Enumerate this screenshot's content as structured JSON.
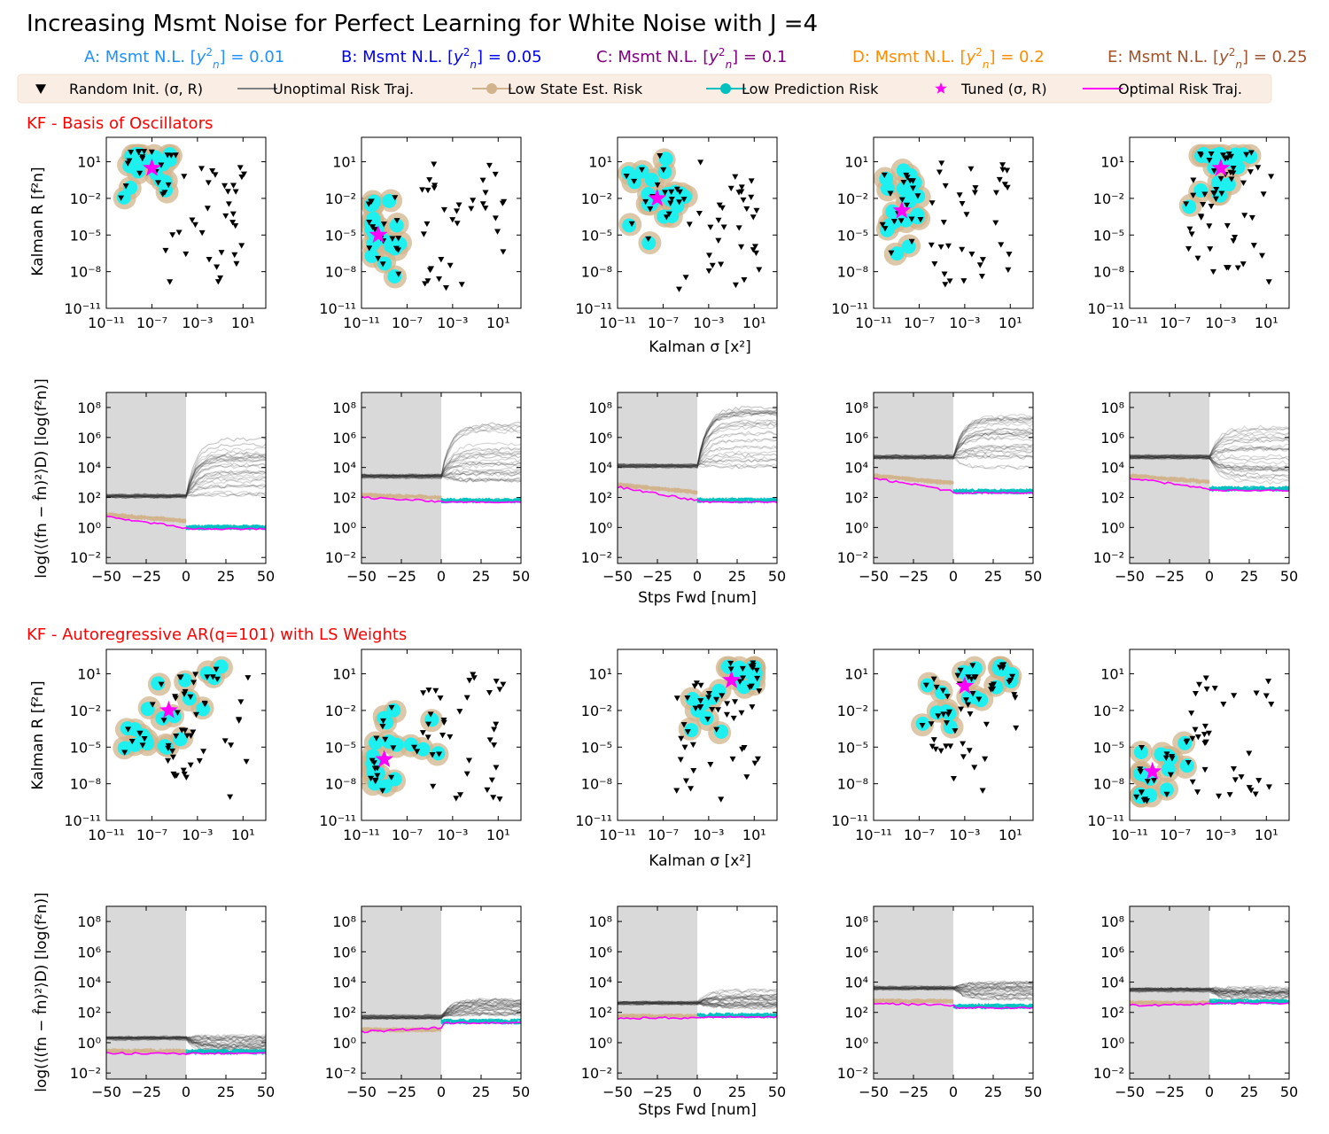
{
  "title": "Increasing Msmt Noise for Perfect Learning for White Noise with J =4",
  "columns": [
    {
      "letter": "A",
      "prefix": "Msmt N.L.",
      "value": "0.01",
      "color": "#1e90ff"
    },
    {
      "letter": "B",
      "prefix": "Msmt N.L.",
      "value": "0.05",
      "color": "#0000ee"
    },
    {
      "letter": "C",
      "prefix": "Msmt N.L.",
      "value": "0.1",
      "color": "#800080"
    },
    {
      "letter": "D",
      "prefix": "Msmt N.L.",
      "value": "0.2",
      "color": "#ff8c00"
    },
    {
      "letter": "E",
      "prefix": "Msmt N.L.",
      "value": "0.25",
      "color": "#a0522d"
    }
  ],
  "legend": [
    {
      "label": "Random Init. (σ, R)",
      "marker": "triangle-down",
      "color": "#000000"
    },
    {
      "label": "Unoptimal Risk Traj.",
      "marker": "line",
      "color": "#808080"
    },
    {
      "label": "Low State Est. Risk",
      "marker": "line-dot",
      "color": "#d2b48c"
    },
    {
      "label": "Low Prediction Risk",
      "marker": "line-dot",
      "color": "#00c0c0"
    },
    {
      "label": "Tuned (σ, R)",
      "marker": "star",
      "color": "#ff00ff"
    },
    {
      "label": "Optimal Risk Traj.",
      "marker": "line",
      "color": "#ff00ff"
    }
  ],
  "sections": [
    {
      "label": "KF - Basis of Oscillators"
    },
    {
      "label": "KF - Autoregressive AR(q=101) with LS Weights"
    }
  ],
  "axes": {
    "scatter_xlabel": "Kalman σ [x²]",
    "scatter_ylabel": "Kalman R [f²n]",
    "traj_xlabel": "Stps Fwd [num]",
    "traj_ylabel": "log(⟨(fn − f̂n)²⟩D) [log(f²n)]",
    "scatter_xticks": [
      "10⁻¹¹",
      "10⁻⁷",
      "10⁻³",
      "10¹"
    ],
    "scatter_yticks": [
      "10⁻¹¹",
      "10⁻⁸",
      "10⁻⁵",
      "10⁻²",
      "10¹"
    ],
    "traj_xticks": [
      "−50",
      "−25",
      "0",
      "25",
      "50"
    ],
    "traj_yticks": [
      "10⁻²",
      "10⁰",
      "10²",
      "10⁴",
      "10⁶",
      "10⁸"
    ]
  },
  "chart_data": [
    {
      "type": "scatter",
      "section": "KF - Basis of Oscillators",
      "xscale": "log",
      "yscale": "log",
      "xlim": [
        1e-11,
        1000.0
      ],
      "ylim": [
        1e-11,
        1000.0
      ],
      "tuned_points": [
        {
          "panel": "A",
          "sigma": 1e-07,
          "R": 3
        },
        {
          "panel": "B",
          "sigma": 3e-10,
          "R": 1e-05
        },
        {
          "panel": "C",
          "sigma": 3e-08,
          "R": 0.01
        },
        {
          "panel": "D",
          "sigma": 3e-09,
          "R": 0.001
        },
        {
          "panel": "E",
          "sigma": 0.001,
          "R": 3
        }
      ]
    },
    {
      "type": "line",
      "section": "KF - Basis of Oscillators",
      "yscale": "log",
      "xlim": [
        -50,
        50
      ],
      "ylim": [
        0.01,
        1000000000.0
      ],
      "optimal_start": [
        5,
        100,
        500,
        2000,
        2000
      ],
      "optimal_end": [
        0.8,
        50,
        50,
        200,
        300
      ],
      "unoptimal_end": [
        10000.0,
        100000.0,
        1000000.0,
        1000000.0,
        100000.0
      ]
    },
    {
      "type": "scatter",
      "section": "KF - Autoregressive AR(q=101) with LS Weights",
      "xscale": "log",
      "yscale": "log",
      "xlim": [
        1e-11,
        1000.0
      ],
      "ylim": [
        1e-11,
        1000.0
      ],
      "tuned_points": [
        {
          "panel": "A",
          "sigma": 3e-06,
          "R": 0.01
        },
        {
          "panel": "B",
          "sigma": 1e-09,
          "R": 1e-06
        },
        {
          "panel": "C",
          "sigma": 0.1,
          "R": 3
        },
        {
          "panel": "D",
          "sigma": 0.001,
          "R": 1
        },
        {
          "panel": "E",
          "sigma": 1e-09,
          "R": 1e-07
        }
      ]
    },
    {
      "type": "line",
      "section": "KF - Autoregressive AR(q=101) with LS Weights",
      "yscale": "log",
      "xlim": [
        -50,
        50
      ],
      "ylim": [
        0.01,
        1000000000.0
      ],
      "optimal_start": [
        0.2,
        5,
        40,
        400,
        300
      ],
      "optimal_end": [
        0.2,
        20,
        50,
        200,
        400
      ],
      "unoptimal_end": [
        1,
        200,
        800,
        3000,
        2000
      ]
    }
  ]
}
